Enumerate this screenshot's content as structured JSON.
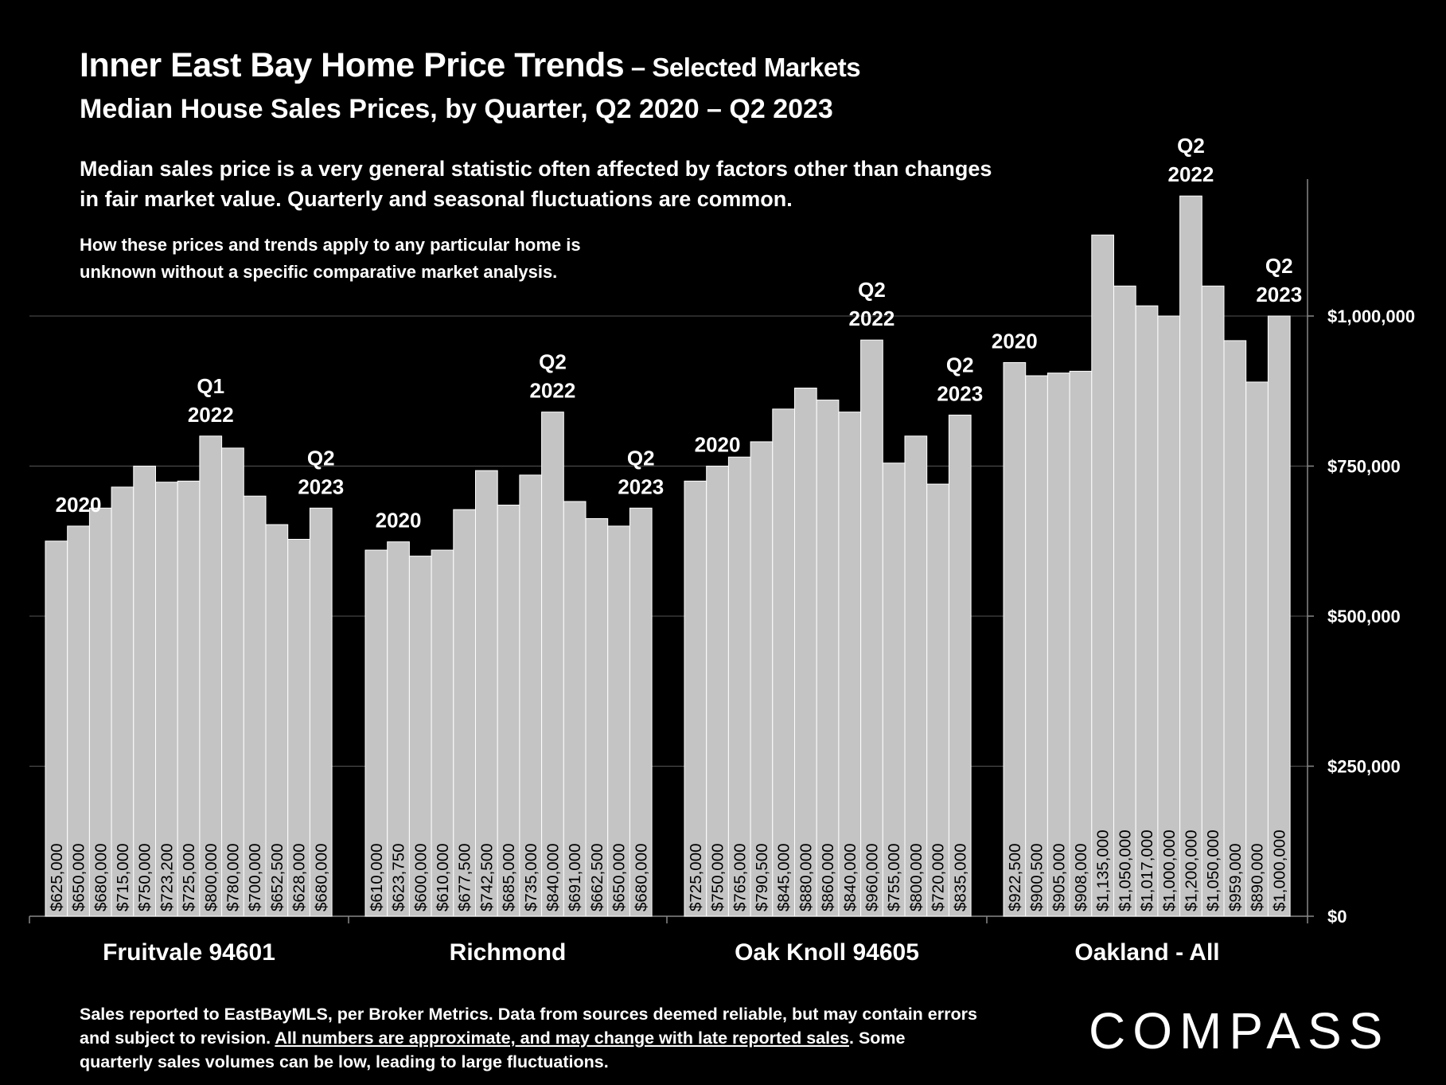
{
  "header": {
    "title_main": "Inner East Bay Home Price Trends",
    "title_suffix": " – Selected Markets",
    "subtitle": "Median House Sales Prices, by Quarter, Q2 2020 – Q2 2023",
    "note_primary": "Median sales price is a very general statistic often affected by factors other than changes in fair market value. Quarterly and seasonal fluctuations are common.",
    "note_secondary": "How these prices and trends apply to any particular home is unknown without a specific comparative market analysis."
  },
  "footer": {
    "text_a": "Sales reported to EastBayMLS, per Broker Metrics. Data from sources deemed reliable, but may contain errors and subject to revision. ",
    "text_underlined": "All numbers are approximate, and may change with late reported sales",
    "text_b": ". Some quarterly sales volumes can be low, leading to large fluctuations."
  },
  "logo": "COMPASS",
  "colors": {
    "background": "#000000",
    "bar": "#c4c4c4",
    "bar_edge": "#ffffff",
    "text": "#ffffff",
    "gridline": "#555555"
  },
  "chart_data": {
    "type": "bar",
    "ylim": [
      0,
      1200000
    ],
    "yticks": [
      0,
      250000,
      500000,
      750000,
      1000000
    ],
    "ytick_labels": [
      "$0",
      "$250,000",
      "$500,000",
      "$750,000",
      "$1,000,000"
    ],
    "grid": true,
    "groups": [
      {
        "name": "Fruitvale 94601",
        "values": [
          625000,
          650000,
          680000,
          715000,
          750000,
          723200,
          725000,
          800000,
          780000,
          700000,
          652500,
          628000,
          680000
        ],
        "labels": [
          "$625,000",
          "$650,000",
          "$680,000",
          "$715,000",
          "$750,000",
          "$723,200",
          "$725,000",
          "$800,000",
          "$780,000",
          "$700,000",
          "$652,500",
          "$628,000",
          "$680,000"
        ],
        "annotations": [
          {
            "bar": 1,
            "lines": [
              "2020"
            ]
          },
          {
            "bar": 7,
            "lines": [
              "Q1",
              "2022"
            ]
          },
          {
            "bar": 12,
            "lines": [
              "Q2",
              "2023"
            ]
          }
        ]
      },
      {
        "name": "Richmond",
        "values": [
          610000,
          623750,
          600000,
          610000,
          677500,
          742500,
          685000,
          735000,
          840000,
          691000,
          662500,
          650000,
          680000
        ],
        "labels": [
          "$610,000",
          "$623,750",
          "$600,000",
          "$610,000",
          "$677,500",
          "$742,500",
          "$685,000",
          "$735,000",
          "$840,000",
          "$691,000",
          "$662,500",
          "$650,000",
          "$680,000"
        ],
        "annotations": [
          {
            "bar": 1,
            "lines": [
              "2020"
            ]
          },
          {
            "bar": 8,
            "lines": [
              "Q2",
              "2022"
            ]
          },
          {
            "bar": 12,
            "lines": [
              "Q2",
              "2023"
            ]
          }
        ]
      },
      {
        "name": "Oak Knoll 94605",
        "values": [
          725000,
          750000,
          765000,
          790500,
          845000,
          880000,
          860000,
          840000,
          960000,
          755000,
          800000,
          720000,
          835000
        ],
        "labels": [
          "$725,000",
          "$750,000",
          "$765,000",
          "$790,500",
          "$845,000",
          "$880,000",
          "$860,000",
          "$840,000",
          "$960,000",
          "$755,000",
          "$800,000",
          "$720,000",
          "$835,000"
        ],
        "annotations": [
          {
            "bar": 1,
            "lines": [
              "2020"
            ]
          },
          {
            "bar": 8,
            "lines": [
              "Q2",
              "2022"
            ]
          },
          {
            "bar": 12,
            "lines": [
              "Q2",
              "2023"
            ]
          }
        ]
      },
      {
        "name": "Oakland - All",
        "values": [
          922500,
          900500,
          905000,
          908000,
          1135000,
          1050000,
          1017000,
          1000000,
          1200000,
          1050000,
          959000,
          890000,
          1000000
        ],
        "labels": [
          "$922,500",
          "$900,500",
          "$905,000",
          "$908,000",
          "$1,135,000",
          "$1,050,000",
          "$1,017,000",
          "$1,000,000",
          "$1,200,000",
          "$1,050,000",
          "$959,000",
          "$890,000",
          "$1,000,000"
        ],
        "annotations": [
          {
            "bar": 0,
            "lines": [
              "2020"
            ]
          },
          {
            "bar": 8,
            "lines": [
              "Q2",
              "2022"
            ]
          },
          {
            "bar": 12,
            "lines": [
              "Q2",
              "2023"
            ]
          }
        ]
      }
    ]
  }
}
